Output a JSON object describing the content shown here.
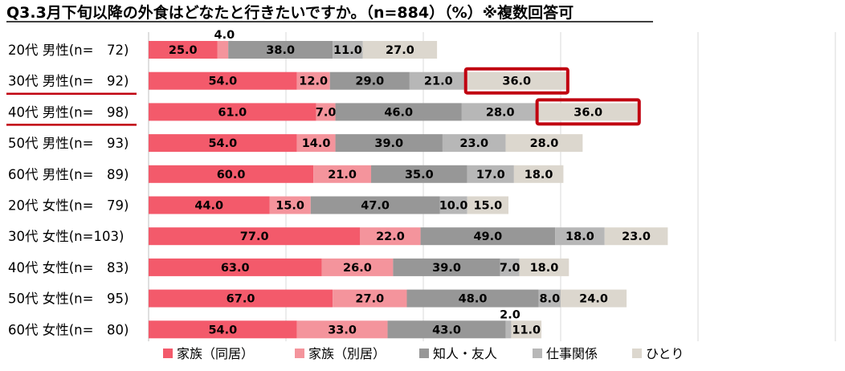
{
  "chart_data": {
    "type": "bar",
    "orientation": "horizontal",
    "stacked": true,
    "title": "Q3.3月下旬以降の外食はどなたと行きたいですか。（n=884）（%）※複数回答可",
    "xlim": [
      0,
      250
    ],
    "grid": true,
    "legend_position": "bottom",
    "categories": [
      "20代 男性(n=　72)",
      "30代 男性(n=　92)",
      "40代 男性(n=　98)",
      "50代 男性(n=　93)",
      "60代 男性(n=　89)",
      "20代 女性(n=　79)",
      "30代 女性(n=103)",
      "40代 女性(n=　83)",
      "50代 女性(n=　95)",
      "60代 女性(n=　80)"
    ],
    "series": [
      {
        "name": "家族（同居）",
        "color": "#f35a6b",
        "values": [
          25.0,
          54.0,
          61.0,
          54.0,
          60.0,
          44.0,
          77.0,
          63.0,
          67.0,
          54.0
        ]
      },
      {
        "name": "家族（別居）",
        "color": "#f4949c",
        "values": [
          4.0,
          12.0,
          7.0,
          14.0,
          21.0,
          15.0,
          22.0,
          26.0,
          27.0,
          33.0
        ]
      },
      {
        "name": "知人・友人",
        "color": "#979797",
        "values": [
          38.0,
          29.0,
          46.0,
          39.0,
          35.0,
          47.0,
          49.0,
          39.0,
          48.0,
          43.0
        ]
      },
      {
        "name": "仕事関係",
        "color": "#b7b7b7",
        "values": [
          11.0,
          21.0,
          28.0,
          23.0,
          17.0,
          10.0,
          18.0,
          7.0,
          8.0,
          2.0
        ]
      },
      {
        "name": "ひとり",
        "color": "#dcd7ce",
        "values": [
          27.0,
          36.0,
          36.0,
          28.0,
          18.0,
          15.0,
          23.0,
          18.0,
          24.0,
          11.0
        ]
      }
    ],
    "highlighted": [
      {
        "category_index": 1,
        "series_index": 4
      },
      {
        "category_index": 2,
        "series_index": 4
      }
    ],
    "underlined_category_indices": [
      1,
      2
    ],
    "highlight_color": "#c00010",
    "label_format": "one-decimal"
  }
}
